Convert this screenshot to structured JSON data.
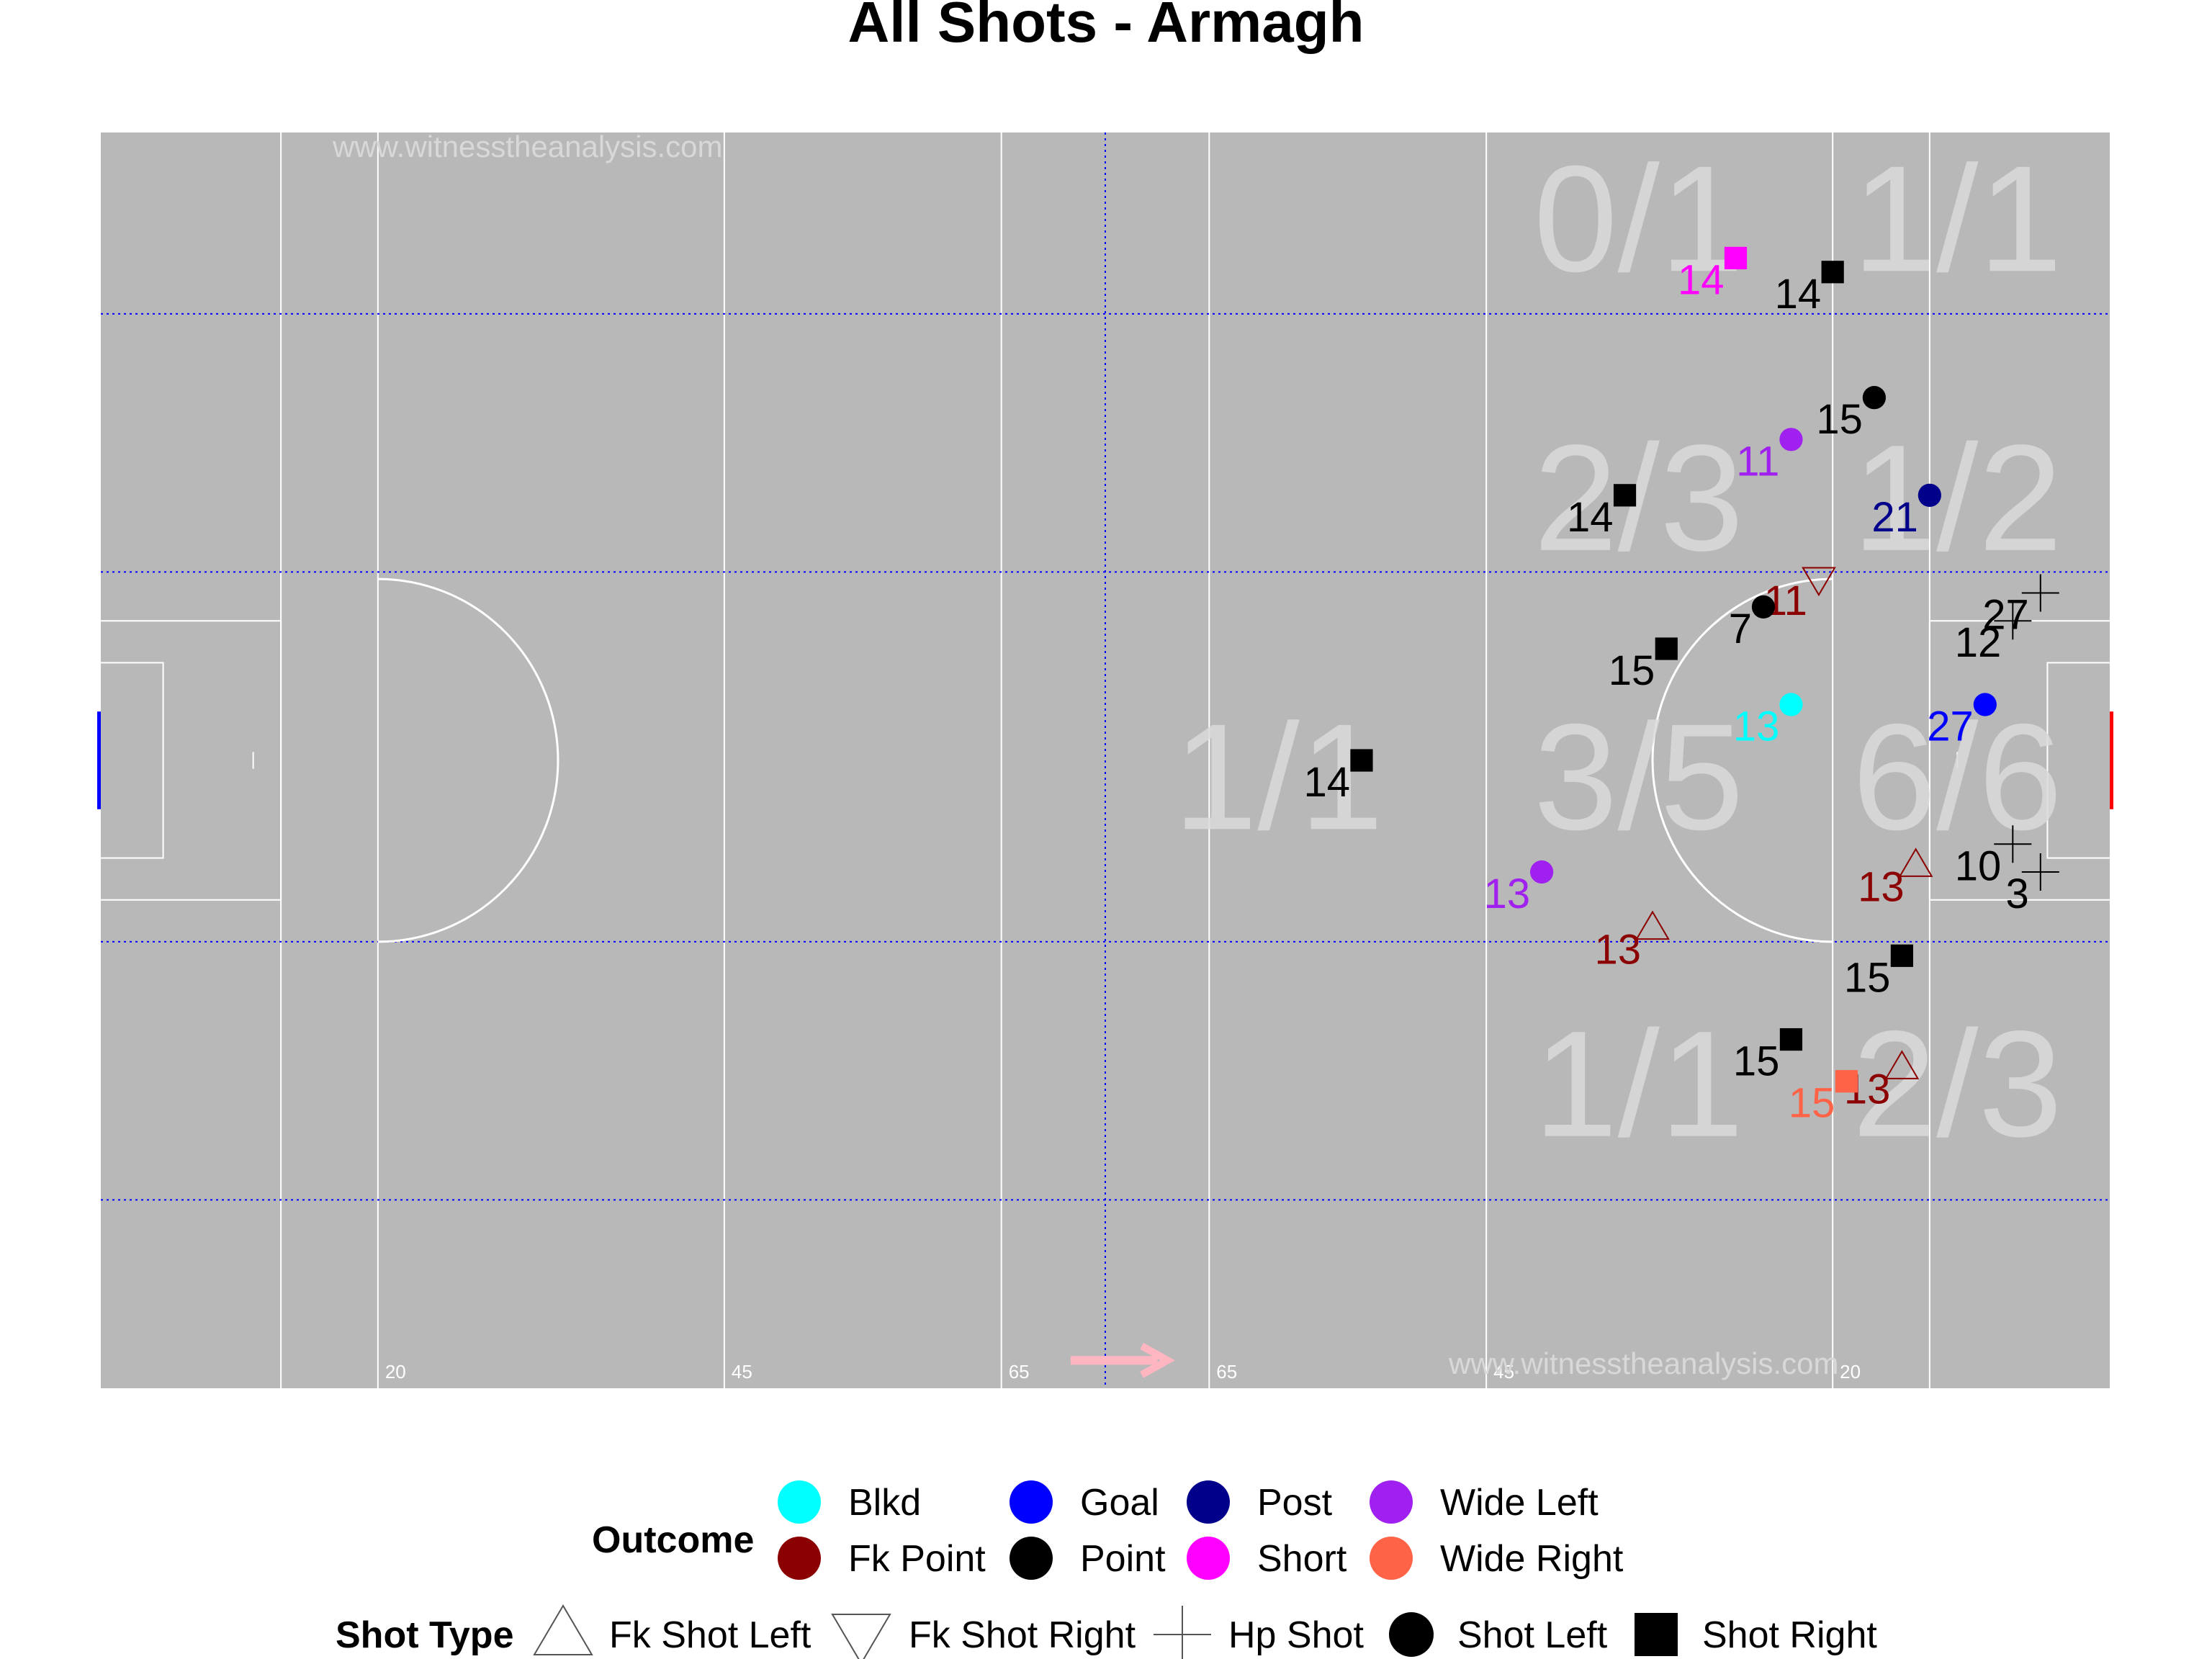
{
  "chart_data": {
    "type": "scatter",
    "title": "All Shots - Armagh",
    "watermark": "www.witnesstheanalysis.com",
    "pitch": {
      "xlim": [
        0,
        145
      ],
      "ylim": [
        0,
        90
      ],
      "marking_lines": [
        13,
        20,
        45,
        65,
        80,
        100,
        125,
        132
      ],
      "marking_labels": [
        {
          "x": 20,
          "text": "20"
        },
        {
          "x": 45,
          "text": "45"
        },
        {
          "x": 65,
          "text": "65"
        },
        {
          "x": 80,
          "text": "65"
        },
        {
          "x": 100,
          "text": "45"
        },
        {
          "x": 125,
          "text": "20"
        }
      ],
      "grid_y": [
        13.5,
        32,
        58.5,
        77
      ],
      "grid_x": [
        72.5
      ],
      "attack_direction": "right"
    },
    "zones": [
      {
        "x": 111,
        "y": 84,
        "text": "0/1"
      },
      {
        "x": 134,
        "y": 84,
        "text": "1/1"
      },
      {
        "x": 111,
        "y": 64,
        "text": "2/3"
      },
      {
        "x": 134,
        "y": 64,
        "text": "1/2"
      },
      {
        "x": 85,
        "y": 44,
        "text": "1/1"
      },
      {
        "x": 111,
        "y": 44,
        "text": "3/5"
      },
      {
        "x": 134,
        "y": 44,
        "text": "6/6"
      },
      {
        "x": 111,
        "y": 22,
        "text": "1/1"
      },
      {
        "x": 134,
        "y": 22,
        "text": "2/3"
      }
    ],
    "points": [
      {
        "x": 118,
        "y": 81,
        "outcome": "Short",
        "shot_type": "Shot Right",
        "label": "14"
      },
      {
        "x": 125,
        "y": 80,
        "outcome": "Point",
        "shot_type": "Shot Right",
        "label": "14"
      },
      {
        "x": 128,
        "y": 71,
        "outcome": "Point",
        "shot_type": "Shot Left",
        "label": "15"
      },
      {
        "x": 122,
        "y": 68,
        "outcome": "Wide Left",
        "shot_type": "Shot Left",
        "label": "11"
      },
      {
        "x": 132,
        "y": 64,
        "outcome": "Post",
        "shot_type": "Shot Left",
        "label": "21"
      },
      {
        "x": 110,
        "y": 64,
        "outcome": "Point",
        "shot_type": "Shot Right",
        "label": "14"
      },
      {
        "x": 124,
        "y": 58,
        "outcome": "Fk Point",
        "shot_type": "Fk Shot Right",
        "label": "11"
      },
      {
        "x": 120,
        "y": 56,
        "outcome": "Point",
        "shot_type": "Shot Left",
        "label": "7"
      },
      {
        "x": 140,
        "y": 57,
        "outcome": "Point",
        "shot_type": "Hp Shot",
        "label": "27"
      },
      {
        "x": 138,
        "y": 55,
        "outcome": "Point",
        "shot_type": "Hp Shot",
        "label": "12"
      },
      {
        "x": 113,
        "y": 53,
        "outcome": "Point",
        "shot_type": "Shot Right",
        "label": "15"
      },
      {
        "x": 122,
        "y": 49,
        "outcome": "Blkd",
        "shot_type": "Shot Left",
        "label": "13"
      },
      {
        "x": 136,
        "y": 49,
        "outcome": "Goal",
        "shot_type": "Shot Left",
        "label": "27"
      },
      {
        "x": 91,
        "y": 45,
        "outcome": "Point",
        "shot_type": "Shot Right",
        "label": "14"
      },
      {
        "x": 138,
        "y": 39,
        "outcome": "Point",
        "shot_type": "Hp Shot",
        "label": "10"
      },
      {
        "x": 140,
        "y": 37,
        "outcome": "Point",
        "shot_type": "Hp Shot",
        "label": "3"
      },
      {
        "x": 104,
        "y": 37,
        "outcome": "Wide Left",
        "shot_type": "Shot Left",
        "label": "13"
      },
      {
        "x": 131,
        "y": 37.5,
        "outcome": "Fk Point",
        "shot_type": "Fk Shot Left",
        "label": "13"
      },
      {
        "x": 112,
        "y": 33,
        "outcome": "Fk Point",
        "shot_type": "Fk Shot Left",
        "label": "13"
      },
      {
        "x": 130,
        "y": 31,
        "outcome": "Point",
        "shot_type": "Shot Right",
        "label": "15"
      },
      {
        "x": 122,
        "y": 25,
        "outcome": "Point",
        "shot_type": "Shot Right",
        "label": "15"
      },
      {
        "x": 130,
        "y": 23,
        "outcome": "Fk Point",
        "shot_type": "Fk Shot Left",
        "label": "13"
      },
      {
        "x": 126,
        "y": 22,
        "outcome": "Wide Right",
        "shot_type": "Shot Right",
        "label": "15"
      }
    ],
    "legend": {
      "position": "bottom",
      "outcome_title": "Outcome",
      "outcomes": [
        {
          "name": "Blkd",
          "color": "#00ffff"
        },
        {
          "name": "Fk Point",
          "color": "#8b0000"
        },
        {
          "name": "Goal",
          "color": "#0000ff"
        },
        {
          "name": "Point",
          "color": "#000000"
        },
        {
          "name": "Post",
          "color": "#00008b"
        },
        {
          "name": "Short",
          "color": "#ff00ff"
        },
        {
          "name": "Wide Left",
          "color": "#a020f0"
        },
        {
          "name": "Wide Right",
          "color": "#ff6347"
        }
      ],
      "shot_type_title": "Shot Type",
      "shot_types": [
        {
          "name": "Fk Shot Left",
          "shape": "triangle-up"
        },
        {
          "name": "Fk Shot Right",
          "shape": "triangle-down"
        },
        {
          "name": "Hp Shot",
          "shape": "plus"
        },
        {
          "name": "Shot Left",
          "shape": "circle"
        },
        {
          "name": "Shot Right",
          "shape": "square"
        }
      ]
    },
    "colors": {
      "pitch": "#b8b8b8",
      "pitch_lines": "#ffffff",
      "grid": "#0000ff",
      "direction_arrow": "#ffb6c1",
      "goal_left": "#0000ff",
      "goal_right": "#ff0000"
    }
  }
}
